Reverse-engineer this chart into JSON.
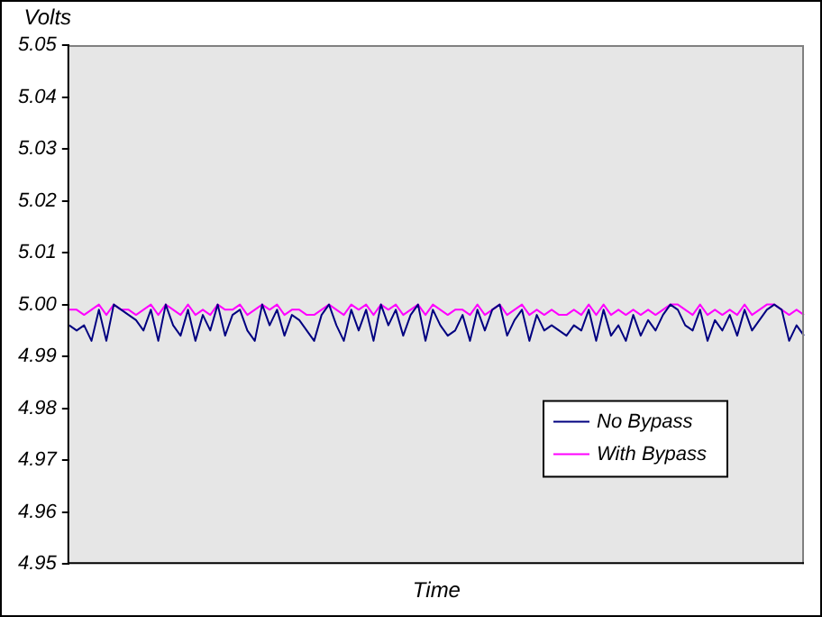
{
  "chart_data": {
    "type": "line",
    "xlabel": "Time",
    "ylabel": "Volts",
    "categories": [
      null,
      null,
      null,
      null,
      null,
      null,
      null,
      null,
      null,
      null,
      null,
      null,
      null,
      null,
      null,
      null,
      null,
      null,
      null,
      null,
      null,
      null,
      null,
      null,
      null,
      null,
      null,
      null,
      null,
      null,
      null,
      null,
      null,
      null,
      null,
      null,
      null,
      null,
      null,
      null,
      null,
      null,
      null,
      null,
      null,
      null,
      null,
      null,
      null,
      null,
      null,
      null,
      null,
      null,
      null,
      null,
      null,
      null,
      null,
      null,
      null,
      null,
      null,
      null,
      null,
      null,
      null,
      null,
      null,
      null,
      null,
      null,
      null,
      null,
      null,
      null,
      null,
      null,
      null,
      null,
      null,
      null,
      null,
      null,
      null,
      null,
      null,
      null,
      null,
      null,
      null,
      null,
      null,
      null,
      null,
      null,
      null,
      null,
      null,
      null
    ],
    "series": [
      {
        "name": "No Bypass",
        "color": "#000080",
        "values": [
          4.996,
          4.995,
          4.996,
          4.993,
          4.999,
          4.993,
          5.0,
          4.999,
          4.998,
          4.997,
          4.995,
          4.999,
          4.993,
          5.0,
          4.996,
          4.994,
          4.999,
          4.993,
          4.998,
          4.995,
          5.0,
          4.994,
          4.998,
          4.999,
          4.995,
          4.993,
          5.0,
          4.996,
          4.999,
          4.994,
          4.998,
          4.997,
          4.995,
          4.993,
          4.998,
          5.0,
          4.996,
          4.993,
          4.999,
          4.995,
          4.999,
          4.993,
          5.0,
          4.996,
          4.999,
          4.994,
          4.998,
          5.0,
          4.993,
          4.999,
          4.996,
          4.994,
          4.995,
          4.998,
          4.993,
          4.999,
          4.995,
          4.999,
          5.0,
          4.994,
          4.997,
          4.999,
          4.993,
          4.998,
          4.995,
          4.996,
          4.995,
          4.994,
          4.996,
          4.995,
          4.999,
          4.993,
          4.999,
          4.994,
          4.996,
          4.993,
          4.998,
          4.994,
          4.997,
          4.995,
          4.998,
          5.0,
          4.999,
          4.996,
          4.995,
          4.999,
          4.993,
          4.997,
          4.995,
          4.998,
          4.994,
          4.999,
          4.995,
          4.997,
          4.999,
          5.0,
          4.999,
          4.993,
          4.996,
          4.994
        ]
      },
      {
        "name": "With Bypass",
        "color": "#ff00ff",
        "values": [
          4.999,
          4.999,
          4.998,
          4.999,
          5.0,
          4.998,
          5.0,
          4.999,
          4.999,
          4.998,
          4.999,
          5.0,
          4.998,
          5.0,
          4.999,
          4.998,
          5.0,
          4.998,
          4.999,
          4.998,
          5.0,
          4.999,
          4.999,
          5.0,
          4.998,
          4.999,
          5.0,
          4.999,
          5.0,
          4.998,
          4.999,
          4.999,
          4.998,
          4.998,
          4.999,
          5.0,
          4.999,
          4.998,
          5.0,
          4.999,
          5.0,
          4.998,
          5.0,
          4.999,
          5.0,
          4.998,
          4.999,
          5.0,
          4.998,
          5.0,
          4.999,
          4.998,
          4.999,
          4.999,
          4.998,
          5.0,
          4.998,
          4.999,
          5.0,
          4.998,
          4.999,
          5.0,
          4.998,
          4.999,
          4.998,
          4.999,
          4.998,
          4.998,
          4.999,
          4.998,
          5.0,
          4.998,
          5.0,
          4.998,
          4.999,
          4.998,
          4.999,
          4.998,
          4.999,
          4.998,
          4.999,
          5.0,
          5.0,
          4.999,
          4.998,
          5.0,
          4.998,
          4.999,
          4.998,
          4.999,
          4.998,
          5.0,
          4.998,
          4.999,
          5.0,
          5.0,
          4.999,
          4.998,
          4.999,
          4.998
        ]
      }
    ],
    "ylim": [
      4.95,
      5.05
    ],
    "yticks": [
      {
        "value": 4.95,
        "label": "4.95"
      },
      {
        "value": 4.96,
        "label": "4.96"
      },
      {
        "value": 4.97,
        "label": "4.97"
      },
      {
        "value": 4.98,
        "label": "4.98"
      },
      {
        "value": 4.99,
        "label": "4.99"
      },
      {
        "value": 5.0,
        "label": "5.00"
      },
      {
        "value": 5.01,
        "label": "5.01"
      },
      {
        "value": 5.02,
        "label": "5.02"
      },
      {
        "value": 5.03,
        "label": "5.03"
      },
      {
        "value": 5.04,
        "label": "5.04"
      },
      {
        "value": 5.05,
        "label": "5.05"
      }
    ],
    "grid": false,
    "legend": "bottom right",
    "marker": "none",
    "line_style": "solid",
    "tick_labels": "y"
  }
}
